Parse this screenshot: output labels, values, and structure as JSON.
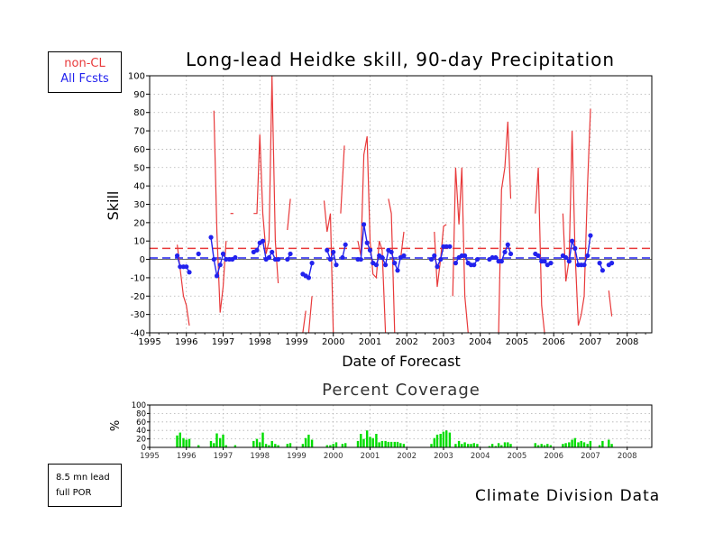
{
  "colors": {
    "noncl": "#e8393a",
    "all": "#2222ee",
    "coverage": "#00dd00",
    "grid": "#b0b0b0"
  },
  "legend": {
    "noncl": "non-CL",
    "all": "All Fcsts"
  },
  "footer_left": {
    "line1": "8.5 mn lead",
    "line2": "full POR"
  },
  "footer_right": "Climate Division Data",
  "chart_data": [
    {
      "type": "line",
      "title": "Long-lead Heidke skill, 90-day Precipitation",
      "xlabel": "Date of Forecast",
      "ylabel": "Skill",
      "x_ticks": [
        "1995",
        "1996",
        "1997",
        "1998",
        "1999",
        "2000",
        "2001",
        "2002",
        "2003",
        "2004",
        "2005",
        "2006",
        "2007",
        "2008"
      ],
      "y_ticks": [
        -40,
        -30,
        -20,
        -10,
        0,
        10,
        20,
        30,
        40,
        50,
        60,
        70,
        80,
        90,
        100
      ],
      "xlim": [
        1995.0,
        2008.67
      ],
      "ylim": [
        -40,
        100
      ],
      "grid": true,
      "legend_position": "outside-top-left",
      "reference_lines": [
        {
          "series": "non-CL",
          "y": 6,
          "style": "dashed"
        },
        {
          "series": "All Fcsts",
          "y": 0.8,
          "style": "dashed"
        }
      ],
      "series": [
        {
          "name": "non-CL",
          "segments": [
            [
              [
                1995.75,
                8
              ],
              [
                1995.83,
                -5
              ],
              [
                1995.92,
                -20
              ],
              [
                1996.0,
                -25
              ],
              [
                1996.08,
                -36
              ]
            ],
            [
              [
                1996.75,
                81
              ],
              [
                1996.83,
                15
              ],
              [
                1996.92,
                -29
              ],
              [
                1997.0,
                -15
              ],
              [
                1997.08,
                10
              ]
            ],
            [
              [
                1997.2,
                25
              ],
              [
                1997.28,
                25
              ]
            ],
            [
              [
                1997.83,
                25
              ],
              [
                1997.92,
                25
              ],
              [
                1998.0,
                68
              ],
              [
                1998.08,
                25
              ],
              [
                1998.17,
                3
              ],
              [
                1998.25,
                10
              ],
              [
                1998.33,
                100
              ],
              [
                1998.42,
                10
              ],
              [
                1998.5,
                -13
              ]
            ],
            [
              [
                1998.75,
                16
              ],
              [
                1998.83,
                33
              ]
            ],
            [
              [
                1999.17,
                -40
              ],
              [
                1999.25,
                -28
              ]
            ],
            [
              [
                1999.33,
                -40
              ],
              [
                1999.42,
                -20
              ]
            ],
            [
              [
                1999.75,
                32
              ],
              [
                1999.83,
                15
              ],
              [
                1999.92,
                25
              ],
              [
                2000.0,
                -40
              ]
            ],
            [
              [
                2000.2,
                25
              ],
              [
                2000.3,
                62
              ]
            ],
            [
              [
                2000.67,
                10
              ],
              [
                2000.75,
                2
              ],
              [
                2000.83,
                57
              ],
              [
                2000.92,
                67
              ],
              [
                2001.0,
                10
              ],
              [
                2001.08,
                -8
              ],
              [
                2001.17,
                -10
              ],
              [
                2001.25,
                10
              ],
              [
                2001.33,
                5
              ],
              [
                2001.42,
                -40
              ]
            ],
            [
              [
                2001.5,
                33
              ],
              [
                2001.58,
                25
              ],
              [
                2001.67,
                -40
              ]
            ],
            [
              [
                2001.83,
                0
              ],
              [
                2001.92,
                15
              ]
            ],
            [
              [
                2002.75,
                15
              ],
              [
                2002.83,
                -15
              ],
              [
                2002.92,
                0
              ],
              [
                2003.0,
                18
              ],
              [
                2003.08,
                19
              ]
            ],
            [
              [
                2003.25,
                -20
              ],
              [
                2003.33,
                50
              ],
              [
                2003.42,
                19
              ],
              [
                2003.5,
                50
              ],
              [
                2003.58,
                -20
              ],
              [
                2003.67,
                -40
              ]
            ],
            [
              [
                2004.5,
                -40
              ],
              [
                2004.58,
                38
              ],
              [
                2004.67,
                50
              ],
              [
                2004.75,
                75
              ],
              [
                2004.83,
                33
              ]
            ],
            [
              [
                2005.5,
                25
              ],
              [
                2005.58,
                50
              ],
              [
                2005.67,
                -25
              ],
              [
                2005.75,
                -40
              ]
            ],
            [
              [
                2006.25,
                25
              ],
              [
                2006.33,
                -12
              ],
              [
                2006.42,
                0
              ],
              [
                2006.5,
                70
              ],
              [
                2006.58,
                5
              ],
              [
                2006.67,
                -36
              ],
              [
                2006.75,
                -30
              ],
              [
                2006.83,
                -20
              ],
              [
                2006.92,
                40
              ],
              [
                2007.0,
                82
              ]
            ],
            [
              [
                2007.5,
                -17
              ],
              [
                2007.58,
                -31
              ]
            ]
          ]
        },
        {
          "name": "All Fcsts",
          "segments": [
            [
              [
                1995.75,
                2
              ],
              [
                1995.83,
                -4
              ],
              [
                1995.92,
                -4
              ],
              [
                1996.0,
                -4
              ],
              [
                1996.08,
                -7
              ]
            ],
            [
              [
                1996.33,
                3
              ]
            ],
            [
              [
                1996.67,
                12
              ],
              [
                1996.75,
                0
              ],
              [
                1996.83,
                -9
              ],
              [
                1996.92,
                -3
              ],
              [
                1997.0,
                3
              ],
              [
                1997.08,
                0
              ],
              [
                1997.17,
                0
              ],
              [
                1997.25,
                0
              ],
              [
                1997.33,
                1
              ]
            ],
            [
              [
                1997.83,
                4
              ],
              [
                1997.92,
                5
              ],
              [
                1998.0,
                9
              ],
              [
                1998.08,
                10
              ],
              [
                1998.17,
                0
              ],
              [
                1998.25,
                1
              ],
              [
                1998.33,
                4
              ],
              [
                1998.42,
                0
              ],
              [
                1998.5,
                0
              ]
            ],
            [
              [
                1998.75,
                0
              ],
              [
                1998.83,
                3
              ]
            ],
            [
              [
                1999.17,
                -8
              ],
              [
                1999.25,
                -9
              ],
              [
                1999.33,
                -10
              ],
              [
                1999.42,
                -2
              ]
            ],
            [
              [
                1999.83,
                5
              ],
              [
                1999.92,
                0
              ],
              [
                2000.0,
                4
              ],
              [
                2000.08,
                -3
              ]
            ],
            [
              [
                2000.25,
                1
              ],
              [
                2000.33,
                8
              ]
            ],
            [
              [
                2000.67,
                0
              ],
              [
                2000.75,
                0
              ],
              [
                2000.83,
                19
              ],
              [
                2000.92,
                9
              ],
              [
                2001.0,
                5
              ],
              [
                2001.08,
                -2
              ],
              [
                2001.17,
                -3
              ],
              [
                2001.25,
                2
              ],
              [
                2001.33,
                1
              ],
              [
                2001.42,
                -3
              ],
              [
                2001.5,
                5
              ],
              [
                2001.58,
                4
              ],
              [
                2001.67,
                -2
              ],
              [
                2001.75,
                -6
              ],
              [
                2001.83,
                1
              ],
              [
                2001.92,
                2
              ]
            ],
            [
              [
                2002.67,
                0
              ],
              [
                2002.75,
                2
              ],
              [
                2002.83,
                -4
              ],
              [
                2002.92,
                0
              ],
              [
                2003.0,
                7
              ],
              [
                2003.08,
                7
              ],
              [
                2003.17,
                7
              ]
            ],
            [
              [
                2003.33,
                -2
              ],
              [
                2003.42,
                1
              ],
              [
                2003.5,
                2
              ],
              [
                2003.58,
                2
              ],
              [
                2003.67,
                -2
              ],
              [
                2003.75,
                -3
              ],
              [
                2003.83,
                -3
              ],
              [
                2003.92,
                0
              ]
            ],
            [
              [
                2004.25,
                0
              ],
              [
                2004.33,
                1
              ]
            ],
            [
              [
                2004.42,
                1
              ],
              [
                2004.5,
                -1
              ],
              [
                2004.58,
                -1
              ],
              [
                2004.67,
                4
              ],
              [
                2004.75,
                8
              ],
              [
                2004.83,
                3
              ]
            ],
            [
              [
                2005.5,
                3
              ],
              [
                2005.58,
                2
              ],
              [
                2005.67,
                -1
              ],
              [
                2005.75,
                -1
              ],
              [
                2005.83,
                -3
              ],
              [
                2005.92,
                -2
              ]
            ],
            [
              [
                2006.25,
                2
              ],
              [
                2006.33,
                1
              ],
              [
                2006.42,
                -1
              ],
              [
                2006.5,
                10
              ],
              [
                2006.58,
                6
              ],
              [
                2006.67,
                -3
              ],
              [
                2006.75,
                -3
              ],
              [
                2006.83,
                -3
              ],
              [
                2006.92,
                2
              ],
              [
                2007.0,
                13
              ]
            ],
            [
              [
                2007.25,
                -2
              ],
              [
                2007.33,
                -6
              ]
            ],
            [
              [
                2007.5,
                -3
              ],
              [
                2007.58,
                -2
              ]
            ]
          ]
        }
      ]
    },
    {
      "type": "bar",
      "title": "Percent Coverage",
      "ylabel": "%",
      "x_ticks": [
        "1995",
        "1996",
        "1997",
        "1998",
        "1999",
        "2000",
        "2001",
        "2002",
        "2003",
        "2004",
        "2005",
        "2006",
        "2007",
        "2008"
      ],
      "y_ticks": [
        0,
        20,
        40,
        60,
        80,
        100
      ],
      "xlim": [
        1995.0,
        2008.67
      ],
      "ylim": [
        0,
        100
      ],
      "grid": true,
      "x": [
        1995.75,
        1995.83,
        1995.92,
        1996.0,
        1996.08,
        1996.33,
        1996.67,
        1996.75,
        1996.83,
        1996.92,
        1997.0,
        1997.08,
        1997.33,
        1997.83,
        1997.92,
        1998.0,
        1998.08,
        1998.17,
        1998.25,
        1998.33,
        1998.42,
        1998.5,
        1998.75,
        1998.83,
        1999.17,
        1999.25,
        1999.33,
        1999.42,
        1999.83,
        1999.92,
        2000.0,
        2000.08,
        2000.25,
        2000.33,
        2000.67,
        2000.75,
        2000.83,
        2000.92,
        2001.0,
        2001.08,
        2001.17,
        2001.25,
        2001.33,
        2001.42,
        2001.5,
        2001.58,
        2001.67,
        2001.75,
        2001.83,
        2001.92,
        2002.67,
        2002.75,
        2002.83,
        2002.92,
        2003.0,
        2003.08,
        2003.17,
        2003.33,
        2003.42,
        2003.5,
        2003.58,
        2003.67,
        2003.75,
        2003.83,
        2003.92,
        2004.25,
        2004.33,
        2004.42,
        2004.5,
        2004.58,
        2004.67,
        2004.75,
        2004.83,
        2005.5,
        2005.58,
        2005.67,
        2005.75,
        2005.83,
        2005.92,
        2006.25,
        2006.33,
        2006.42,
        2006.5,
        2006.58,
        2006.67,
        2006.75,
        2006.83,
        2006.92,
        2007.0,
        2007.25,
        2007.33,
        2007.5,
        2007.58
      ],
      "values": [
        28,
        35,
        22,
        18,
        20,
        5,
        15,
        10,
        33,
        22,
        30,
        5,
        5,
        15,
        20,
        12,
        35,
        8,
        5,
        15,
        8,
        5,
        8,
        10,
        8,
        22,
        30,
        18,
        5,
        5,
        8,
        12,
        8,
        10,
        15,
        32,
        20,
        40,
        25,
        22,
        32,
        12,
        15,
        15,
        13,
        13,
        13,
        13,
        10,
        8,
        8,
        22,
        30,
        32,
        37,
        40,
        35,
        8,
        15,
        8,
        12,
        8,
        8,
        10,
        8,
        3,
        8,
        3,
        10,
        5,
        12,
        12,
        8,
        10,
        5,
        8,
        5,
        8,
        5,
        8,
        10,
        12,
        18,
        22,
        12,
        15,
        12,
        8,
        15,
        5,
        15,
        18,
        8
      ]
    }
  ]
}
